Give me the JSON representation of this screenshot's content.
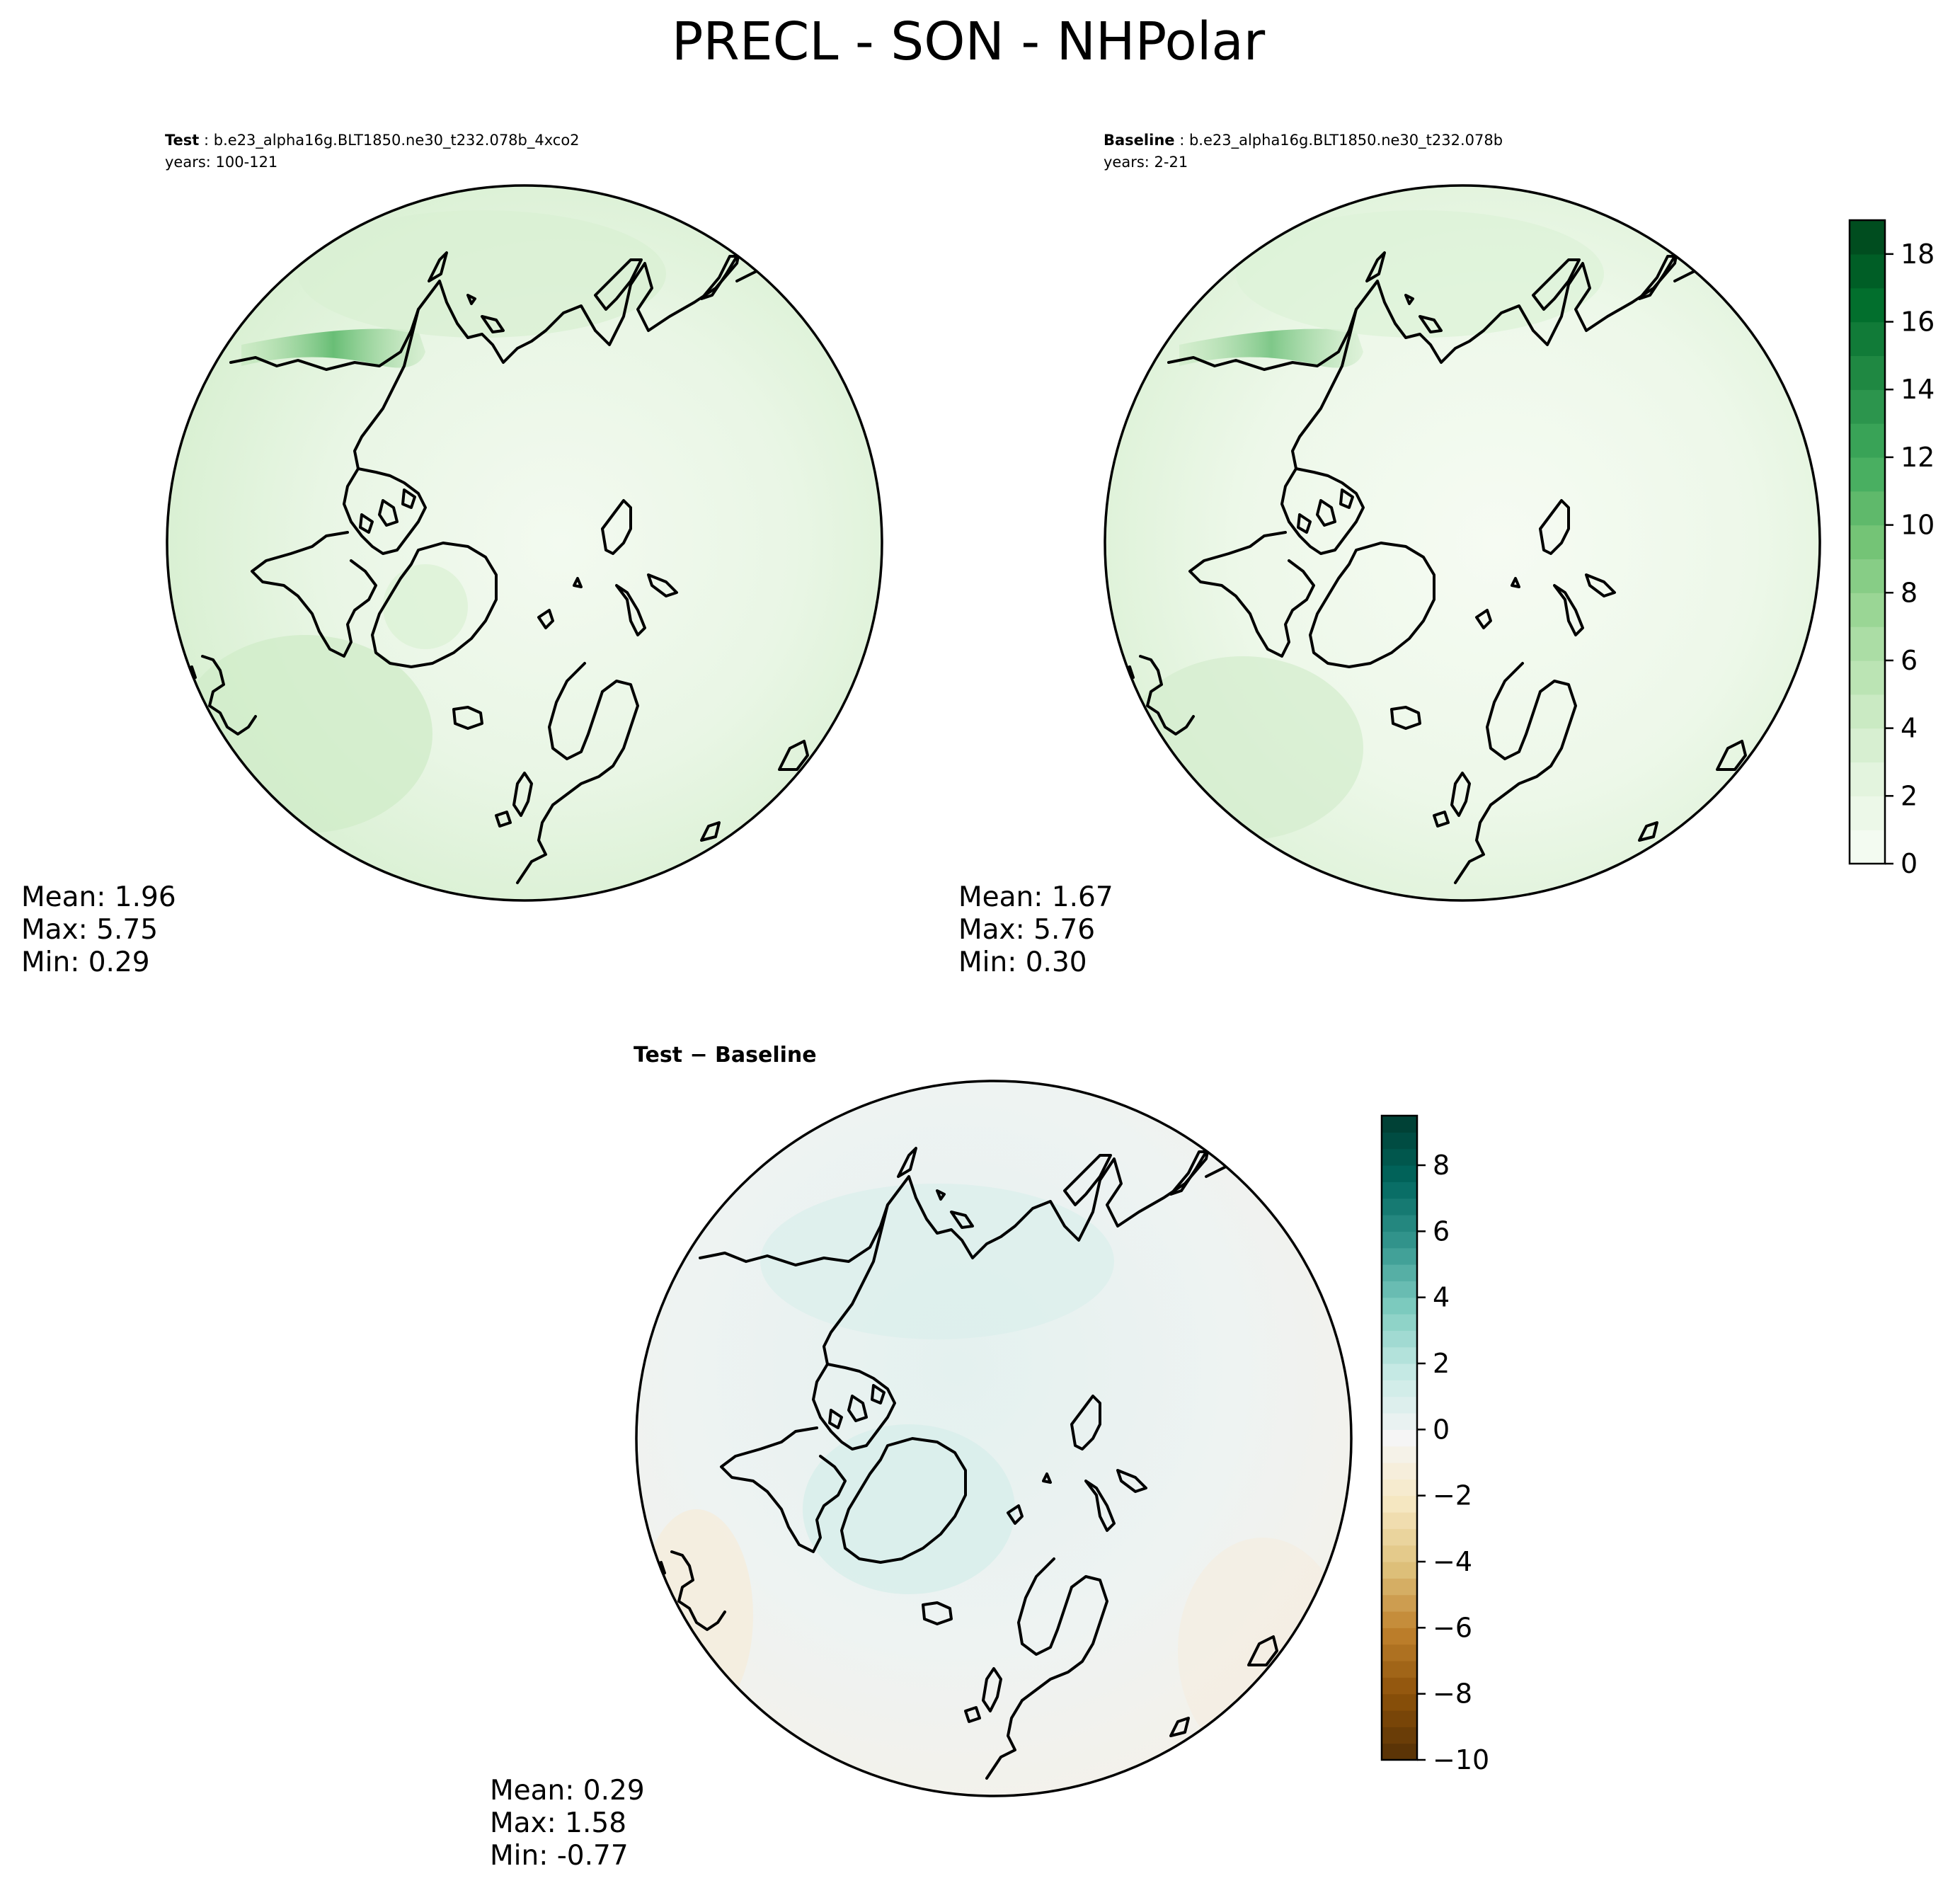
{
  "title": "PRECL - SON - NHPolar",
  "panels": {
    "test": {
      "label": "Test",
      "case": "b.e23_alpha16g.BLT1850.ne30_t232.078b_4xco2",
      "years": "years: 100-121",
      "stats": {
        "mean": "Mean:  1.96",
        "max": "Max:  5.75",
        "min": "Min:  0.29"
      }
    },
    "baseline": {
      "label": "Baseline",
      "case": "b.e23_alpha16g.BLT1850.ne30_t232.078b",
      "years": "years: 2-21",
      "stats": {
        "mean": "Mean:  1.67",
        "max": "Max:  5.76",
        "min": "Min:  0.30"
      }
    },
    "diff": {
      "label": "Test − Baseline",
      "stats": {
        "mean": "Mean:  0.29",
        "max": "Max:  1.58",
        "min": "Min: -0.77"
      }
    }
  },
  "colorbars": {
    "abs": {
      "ticks": [
        "0",
        "2",
        "4",
        "6",
        "8",
        "10",
        "12",
        "14",
        "16",
        "18"
      ],
      "range": [
        0,
        19
      ],
      "colormap": "Greens",
      "colors": [
        "#f7fcf5",
        "#e5f5e0",
        "#c7e9c0",
        "#a1d99b",
        "#74c476",
        "#41ab5d",
        "#238b45",
        "#006d2c",
        "#00441b"
      ]
    },
    "diff": {
      "ticks": [
        "−10",
        "−8",
        "−6",
        "−4",
        "−2",
        "0",
        "2",
        "4",
        "6",
        "8"
      ],
      "range": [
        -10,
        9.5
      ],
      "colormap": "BrBG",
      "colors": [
        "#543005",
        "#8c510a",
        "#bf812d",
        "#dfc27d",
        "#f6e8c3",
        "#f5f5f5",
        "#c7eae5",
        "#80cdc1",
        "#35978f",
        "#01665e",
        "#003c30"
      ]
    }
  }
}
